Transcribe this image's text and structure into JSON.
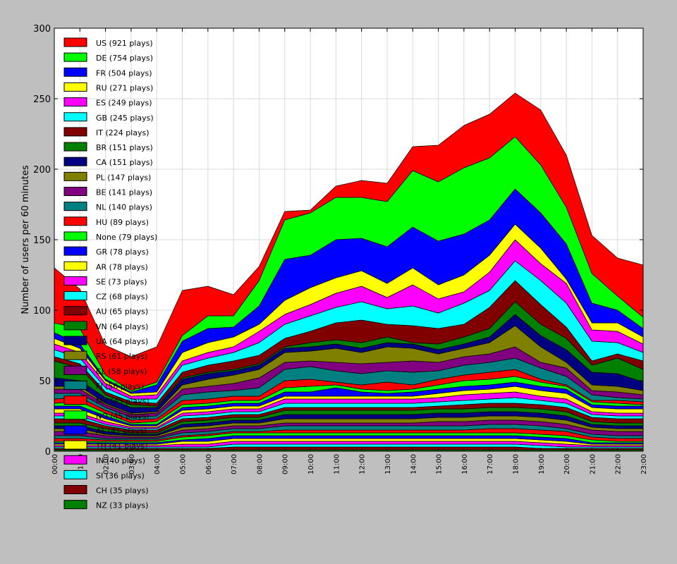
{
  "colors": {
    "figure_background": "#bfbfbf",
    "axes_background": "#ffffff",
    "grid": "#d9d9d9",
    "palette": [
      "#ff0000",
      "#00ff00",
      "#0000ff",
      "#ffff00",
      "#ff00ff",
      "#00ffff",
      "#800000",
      "#008000",
      "#000080",
      "#808000",
      "#800080",
      "#008080"
    ]
  },
  "chart_data": {
    "type": "area",
    "stacked": true,
    "title": "",
    "xlabel": "",
    "ylabel": "Number of users per 60 minutes",
    "ylim": [
      0,
      300
    ],
    "y_ticks": [
      0,
      50,
      100,
      150,
      200,
      250,
      300
    ],
    "grid": true,
    "legend_position": "top-left",
    "x": [
      "00:00",
      "01:00",
      "02:00",
      "03:00",
      "04:00",
      "05:00",
      "06:00",
      "07:00",
      "08:00",
      "09:00",
      "10:00",
      "11:00",
      "12:00",
      "13:00",
      "14:00",
      "15:00",
      "16:00",
      "17:00",
      "18:00",
      "19:00",
      "20:00",
      "21:00",
      "22:00",
      "23:00"
    ],
    "series": [
      {
        "name": "US (921 plays)",
        "values": [
          39,
          28,
          21,
          24,
          25,
          32,
          21,
          15,
          10,
          6,
          2,
          8,
          12,
          13,
          17,
          26,
          30,
          31,
          31,
          39,
          37,
          27,
          27,
          37
        ]
      },
      {
        "name": "DE (754 plays)",
        "values": [
          7,
          11,
          3,
          1,
          2,
          4,
          9,
          8,
          18,
          28,
          30,
          30,
          29,
          32,
          40,
          42,
          47,
          44,
          37,
          34,
          26,
          21,
          10,
          8
        ]
      },
      {
        "name": "FR (504 plays)",
        "values": [
          4,
          3,
          1,
          1,
          5,
          8,
          10,
          7,
          13,
          29,
          23,
          27,
          23,
          26,
          29,
          31,
          29,
          25,
          25,
          25,
          25,
          14,
          9,
          6
        ]
      },
      {
        "name": "RU (271 plays)",
        "values": [
          4,
          3,
          2,
          2,
          2,
          6,
          7,
          7,
          5,
          10,
          12,
          11,
          11,
          10,
          12,
          10,
          12,
          12,
          11,
          11,
          3,
          5,
          6,
          5
        ]
      },
      {
        "name": "ES (249 plays)",
        "values": [
          4,
          4,
          3,
          2,
          3,
          3,
          4,
          4,
          8,
          7,
          8,
          10,
          11,
          8,
          15,
          10,
          8,
          13,
          15,
          12,
          14,
          8,
          8,
          6
        ]
      },
      {
        "name": "GB (245 plays)",
        "values": [
          5,
          4,
          3,
          2,
          3,
          5,
          5,
          6,
          9,
          10,
          11,
          11,
          13,
          11,
          14,
          11,
          15,
          12,
          14,
          17,
          17,
          14,
          8,
          6
        ]
      },
      {
        "name": "IT (224 plays)",
        "values": [
          3,
          3,
          2,
          2,
          2,
          4,
          5,
          6,
          6,
          6,
          8,
          12,
          16,
          9,
          12,
          11,
          9,
          15,
          15,
          14,
          8,
          3,
          3,
          6
        ]
      },
      {
        "name": "BR (151 plays)",
        "values": [
          12,
          9,
          2,
          2,
          1,
          1,
          1,
          1,
          1,
          1,
          3,
          3,
          4,
          4,
          1,
          4,
          5,
          6,
          9,
          8,
          8,
          5,
          11,
          9
        ]
      },
      {
        "name": "CA (151 plays)",
        "values": [
          6,
          4,
          4,
          4,
          3,
          4,
          4,
          3,
          3,
          3,
          3,
          3,
          3,
          3,
          3,
          3,
          3,
          4,
          8,
          8,
          9,
          9,
          9,
          6
        ]
      },
      {
        "name": "PL (147 plays)",
        "values": [
          2,
          2,
          1,
          1,
          1,
          3,
          5,
          6,
          6,
          7,
          7,
          10,
          8,
          11,
          9,
          6,
          6,
          8,
          15,
          11,
          4,
          4,
          4,
          3
        ]
      },
      {
        "name": "BE (141 plays)",
        "values": [
          3,
          3,
          2,
          2,
          2,
          4,
          4,
          5,
          7,
          5,
          4,
          6,
          7,
          6,
          8,
          6,
          6,
          6,
          8,
          4,
          6,
          3,
          4,
          3
        ]
      },
      {
        "name": "NL (140 plays)",
        "values": [
          4,
          3,
          2,
          2,
          2,
          4,
          5,
          4,
          6,
          8,
          9,
          8,
          8,
          8,
          9,
          6,
          7,
          7,
          8,
          8,
          6,
          4,
          2,
          2
        ]
      },
      {
        "name": "HU (89 plays)",
        "values": [
          3,
          3,
          2,
          2,
          2,
          3,
          3,
          3,
          3,
          5,
          5,
          2,
          3,
          6,
          3,
          4,
          4,
          5,
          5,
          2,
          1,
          1,
          2,
          2
        ]
      },
      {
        "name": "None (79 plays)",
        "values": [
          2,
          3,
          2,
          1,
          2,
          2,
          2,
          2,
          2,
          3,
          4,
          2,
          2,
          2,
          2,
          3,
          4,
          4,
          4,
          3,
          2,
          2,
          2,
          1
        ]
      },
      {
        "name": "GR (78 plays)",
        "values": [
          2,
          2,
          2,
          1,
          1,
          2,
          2,
          2,
          2,
          3,
          3,
          6,
          3,
          2,
          3,
          3,
          3,
          3,
          3,
          3,
          3,
          2,
          2,
          2
        ]
      },
      {
        "name": "AR (78 plays)",
        "values": [
          3,
          3,
          2,
          1,
          1,
          2,
          2,
          2,
          2,
          2,
          2,
          2,
          2,
          2,
          2,
          3,
          3,
          3,
          4,
          4,
          4,
          3,
          3,
          3
        ]
      },
      {
        "name": "SE (73 plays)",
        "values": [
          2,
          2,
          2,
          1,
          1,
          2,
          2,
          2,
          2,
          3,
          3,
          3,
          3,
          3,
          3,
          3,
          4,
          4,
          4,
          3,
          3,
          2,
          2,
          2
        ]
      },
      {
        "name": "CZ (68 plays)",
        "values": [
          2,
          2,
          1,
          1,
          1,
          2,
          2,
          2,
          2,
          3,
          3,
          3,
          3,
          3,
          3,
          3,
          3,
          3,
          4,
          3,
          3,
          2,
          2,
          2
        ]
      },
      {
        "name": "AU (65 plays)",
        "values": [
          3,
          3,
          2,
          2,
          2,
          2,
          2,
          2,
          2,
          2,
          2,
          2,
          2,
          2,
          2,
          2,
          3,
          3,
          3,
          3,
          3,
          3,
          3,
          3
        ]
      },
      {
        "name": "VN (64 plays)",
        "values": [
          2,
          2,
          2,
          1,
          1,
          2,
          2,
          2,
          2,
          3,
          3,
          3,
          3,
          3,
          3,
          3,
          3,
          3,
          3,
          3,
          3,
          2,
          2,
          2
        ]
      },
      {
        "name": "UA (64 plays)",
        "values": [
          2,
          2,
          2,
          1,
          1,
          2,
          2,
          2,
          2,
          3,
          3,
          3,
          3,
          3,
          3,
          3,
          3,
          3,
          3,
          3,
          3,
          2,
          2,
          2
        ]
      },
      {
        "name": "RS (61 plays)",
        "values": [
          2,
          2,
          1,
          1,
          1,
          2,
          2,
          2,
          2,
          3,
          3,
          3,
          3,
          3,
          3,
          3,
          3,
          3,
          3,
          3,
          3,
          2,
          2,
          2
        ]
      },
      {
        "name": "CL (58 plays)",
        "values": [
          3,
          3,
          2,
          1,
          1,
          2,
          2,
          2,
          2,
          2,
          2,
          2,
          2,
          2,
          2,
          3,
          3,
          3,
          3,
          3,
          3,
          3,
          3,
          3
        ]
      },
      {
        "name": "FI (56 plays)",
        "values": [
          2,
          2,
          1,
          1,
          1,
          2,
          2,
          2,
          2,
          3,
          3,
          3,
          3,
          3,
          3,
          3,
          3,
          3,
          3,
          3,
          2,
          2,
          2,
          2
        ]
      },
      {
        "name": "MX (45 plays)",
        "values": [
          2,
          2,
          1,
          1,
          1,
          1,
          1,
          1,
          1,
          2,
          2,
          2,
          2,
          2,
          2,
          2,
          2,
          3,
          3,
          3,
          3,
          2,
          2,
          2
        ]
      },
      {
        "name": "NO (45 plays)",
        "values": [
          1,
          1,
          1,
          1,
          1,
          2,
          2,
          2,
          2,
          2,
          2,
          2,
          2,
          2,
          2,
          2,
          2,
          2,
          2,
          2,
          2,
          2,
          1,
          1
        ]
      },
      {
        "name": "AT (41 plays)",
        "values": [
          1,
          1,
          1,
          1,
          1,
          1,
          2,
          2,
          2,
          2,
          2,
          2,
          2,
          2,
          2,
          2,
          2,
          2,
          2,
          2,
          2,
          1,
          1,
          1
        ]
      },
      {
        "name": "TH (41 plays)",
        "values": [
          1,
          1,
          1,
          1,
          1,
          2,
          2,
          2,
          2,
          2,
          2,
          2,
          2,
          2,
          2,
          2,
          2,
          2,
          2,
          2,
          2,
          1,
          1,
          1
        ]
      },
      {
        "name": "IN (40 plays)",
        "values": [
          1,
          1,
          1,
          1,
          1,
          2,
          2,
          2,
          2,
          2,
          2,
          2,
          2,
          2,
          2,
          2,
          2,
          2,
          2,
          2,
          2,
          1,
          1,
          1
        ]
      },
      {
        "name": "SI (36 plays)",
        "values": [
          1,
          1,
          1,
          1,
          1,
          1,
          1,
          2,
          2,
          2,
          2,
          2,
          2,
          2,
          2,
          2,
          2,
          2,
          2,
          2,
          1,
          1,
          1,
          1
        ]
      },
      {
        "name": "CH (35 plays)",
        "values": [
          1,
          1,
          1,
          1,
          1,
          1,
          1,
          2,
          2,
          2,
          2,
          2,
          2,
          2,
          2,
          2,
          2,
          2,
          2,
          1,
          1,
          1,
          1,
          1
        ]
      },
      {
        "name": "NZ (33 plays)",
        "values": [
          1,
          1,
          1,
          1,
          1,
          1,
          1,
          1,
          1,
          1,
          1,
          1,
          1,
          1,
          1,
          1,
          1,
          1,
          1,
          1,
          1,
          1,
          1,
          1
        ]
      }
    ],
    "hidden_legend_rows": 7
  }
}
